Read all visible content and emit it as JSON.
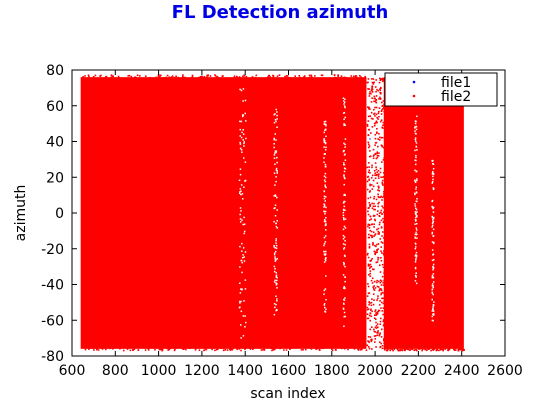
{
  "chart_data": {
    "type": "scatter",
    "title": "FL Detection azimuth",
    "title_color": "#0000e6",
    "xlabel": "scan index",
    "ylabel": "azimuth",
    "xlim": [
      600,
      2600
    ],
    "ylim": [
      -80,
      80
    ],
    "xticks": [
      "600",
      "800",
      "1000",
      "1200",
      "1400",
      "1600",
      "1800",
      "2000",
      "2200",
      "2400",
      "2600"
    ],
    "yticks": [
      "80",
      "60",
      "40",
      "20",
      "0",
      "-20",
      "-40",
      "-60",
      "-80"
    ],
    "grid": false,
    "legend_position": "top-right",
    "series": [
      {
        "name": "file1",
        "color": "#0000ff",
        "marker": "dot",
        "segments": [
          {
            "x_range": [
              640,
              2410
            ],
            "y_range": [
              -76,
              76
            ]
          }
        ]
      },
      {
        "name": "file2",
        "color": "#ff0000",
        "marker": "dot",
        "segments": [
          {
            "x_range": [
              640,
              1960
            ],
            "y_range": [
              -76,
              76
            ]
          },
          {
            "x_range": [
              1960,
              2040
            ],
            "y_range": [
              -76,
              76
            ],
            "density": "sparse"
          },
          {
            "x_range": [
              2040,
              2410
            ],
            "y_range": [
              -76,
              76
            ]
          }
        ]
      }
    ]
  }
}
